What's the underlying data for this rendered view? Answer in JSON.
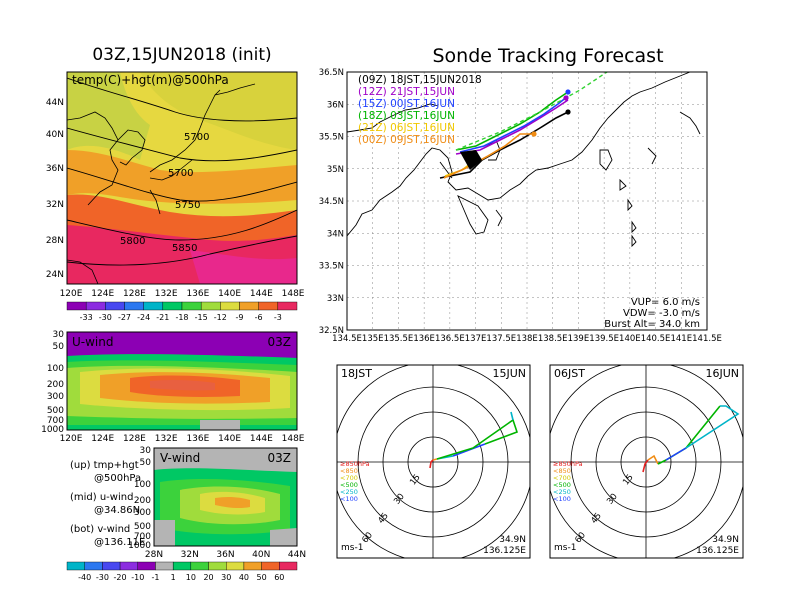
{
  "titles": {
    "map_title": "03Z,15JUN2018 (init)",
    "track_title": "Sonde Tracking Forecast"
  },
  "map": {
    "label": "temp(C)+hgt(m)@500hPa",
    "ylabels": [
      "44N",
      "40N",
      "36N",
      "32N",
      "28N",
      "24N"
    ],
    "xlabels": [
      "120E",
      "124E",
      "128E",
      "132E",
      "136E",
      "140E",
      "144E",
      "148E"
    ],
    "contour_labels": [
      "5700",
      "5700",
      "5750",
      "5800",
      "5850"
    ]
  },
  "temp_colorbar": {
    "labels": [
      "-33",
      "-30",
      "-27",
      "-24",
      "-21",
      "-18",
      "-15",
      "-12",
      "-9",
      "-6",
      "-3"
    ],
    "colors": [
      "#8c00b4",
      "#8c2ce0",
      "#4848f0",
      "#2c78f0",
      "#00b4c8",
      "#00c864",
      "#3cd23c",
      "#a0dc3c",
      "#dcdc40",
      "#f0a028",
      "#f06428",
      "#e82860"
    ]
  },
  "uwind": {
    "label": "U-wind",
    "time": "03Z",
    "ylabels": [
      "30",
      "50",
      "100",
      "200",
      "300",
      "500",
      "700",
      "1000"
    ],
    "xlabels": [
      "120E",
      "124E",
      "128E",
      "132E",
      "136E",
      "140E",
      "144E",
      "148E"
    ]
  },
  "vwind": {
    "label": "V-wind",
    "time": "03Z",
    "ylabels": [
      "30",
      "50",
      "100",
      "200",
      "300",
      "500",
      "700",
      "1000"
    ],
    "xlabels": [
      "28N",
      "32N",
      "36N",
      "40N",
      "44N"
    ]
  },
  "wind_colorbar": {
    "labels": [
      "-40",
      "-30",
      "-20",
      "-10",
      "-1",
      "1",
      "10",
      "20",
      "30",
      "40",
      "50",
      "60"
    ],
    "colors": [
      "#00b4c8",
      "#2c78f0",
      "#4848f0",
      "#8c2ce0",
      "#8c00b4",
      "#b4b4b4",
      "#00c864",
      "#3cd23c",
      "#a0dc3c",
      "#dcdc40",
      "#f0a028",
      "#f06428",
      "#e82860"
    ]
  },
  "legend": {
    "line1": "(up) tmp+hgt",
    "line2": "@500hPa",
    "line3": "(mid) u-wind",
    "line4": "@34.86N",
    "line5": "(bot) v-wind",
    "line6": "@136.11E"
  },
  "track": {
    "ylabels": [
      "36.5N",
      "36N",
      "35.5N",
      "35N",
      "34.5N",
      "34N",
      "33.5N",
      "33N",
      "32.5N"
    ],
    "xlabels": [
      "134.5E",
      "135E",
      "135.5E",
      "136E",
      "136.5E",
      "137E",
      "137.5E",
      "138E",
      "138.5E",
      "139E",
      "139.5E",
      "140E",
      "140.5E",
      "141E",
      "141.5E"
    ],
    "runs": [
      {
        "label": "(09Z)  18JST,15JUN2018",
        "color": "#000000"
      },
      {
        "label": "(12Z)  21JST,15JUN",
        "color": "#a000c8"
      },
      {
        "label": "(15Z)  00JST,16JUN",
        "color": "#2040ff"
      },
      {
        "label": "(18Z)  03JST,16JUN",
        "color": "#00b400"
      },
      {
        "label": "(21Z)  06JST,16JUN",
        "color": "#f0c800"
      },
      {
        "label": "(00Z)  09JST,16JUN",
        "color": "#f08c14"
      }
    ],
    "vup": "VUP=  6.0  m/s",
    "vdw": "VDW= -3.0  m/s",
    "burst": "Burst Alt=  34.0  km"
  },
  "hodo_left": {
    "left_label": "18JST",
    "right_label": "15JUN",
    "lat": "34.9N",
    "lon": "136.125E",
    "unit": "ms-1",
    "rings": [
      "15",
      "30",
      "45",
      "60"
    ]
  },
  "hodo_right": {
    "left_label": "06JST",
    "right_label": "16JUN",
    "lat": "34.9N",
    "lon": "136.125E",
    "unit": "ms-1",
    "rings": [
      "15",
      "30",
      "45",
      "60"
    ]
  },
  "hodo_levels": [
    {
      "label": "≥850hPa",
      "color": "#e82020"
    },
    {
      "label": "<850",
      "color": "#f08c14"
    },
    {
      "label": "<700",
      "color": "#d2c800"
    },
    {
      "label": "<500",
      "color": "#00b400"
    },
    {
      "label": "<250",
      "color": "#00b4c8"
    },
    {
      "label": "<100",
      "color": "#2040ff"
    }
  ]
}
